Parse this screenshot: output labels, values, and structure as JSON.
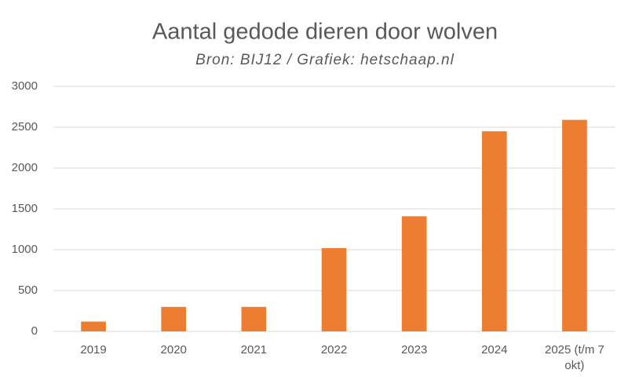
{
  "chart_data": {
    "type": "bar",
    "title": "Aantal gedode dieren door wolven",
    "subtitle": "Bron: BIJ12 / Grafiek: hetschaap.nl",
    "categories": [
      "2019",
      "2020",
      "2021",
      "2022",
      "2023",
      "2024",
      "2025 (t/m 7 okt)"
    ],
    "values": [
      120,
      300,
      300,
      1020,
      1410,
      2450,
      2590
    ],
    "color": "#ed7d31",
    "ylim": [
      0,
      3000
    ],
    "yticks": [
      0,
      500,
      1000,
      1500,
      2000,
      2500,
      3000
    ],
    "grid": true
  }
}
